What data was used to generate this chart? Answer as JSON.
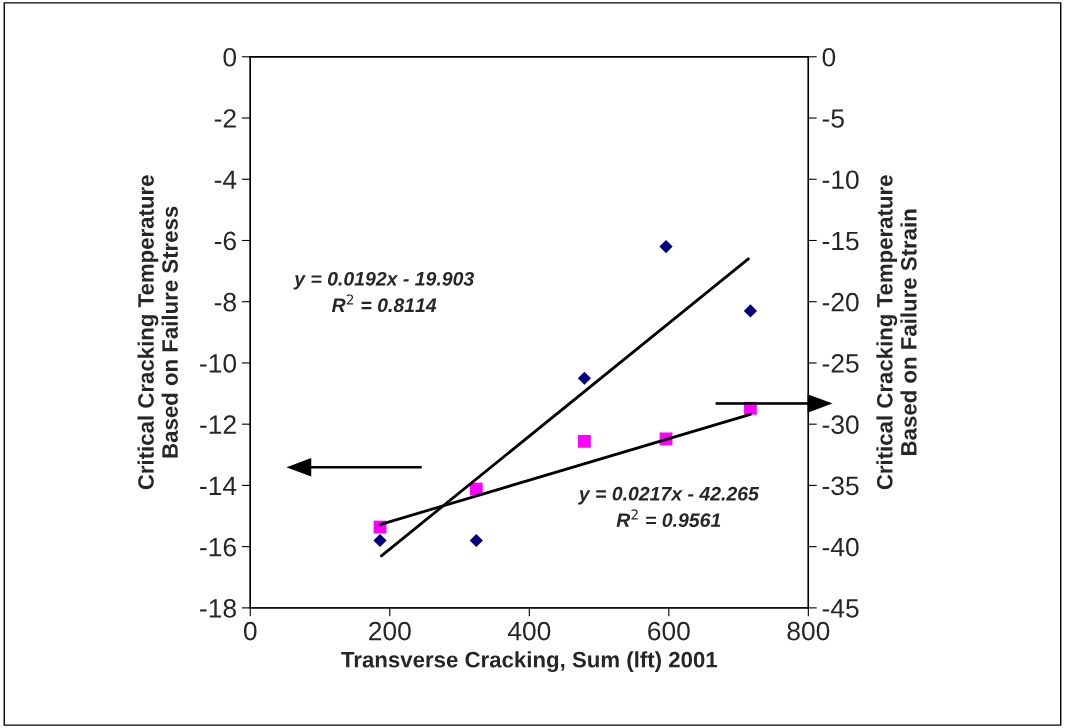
{
  "chart_data": {
    "type": "scatter",
    "xlabel": "Transverse Cracking, Sum (lft) 2001",
    "ylabel": "Critical Cracking Temperature\nBased on Failure Stress",
    "y2label": "Critical Cracking Temperature\nBased on Failure Strain",
    "xlim": [
      0,
      800
    ],
    "xticks": [
      0,
      200,
      400,
      600,
      800
    ],
    "ylim": [
      -18,
      0
    ],
    "yticks": [
      -18,
      -16,
      -14,
      -12,
      -10,
      -8,
      -6,
      -4,
      -2,
      0
    ],
    "y2lim": [
      -45,
      0
    ],
    "y2ticks": [
      -45,
      -40,
      -35,
      -30,
      -25,
      -20,
      -15,
      -10,
      -5,
      0
    ],
    "grid": false,
    "legend": false,
    "annotations": [
      "y = 0.0192x - 19.903\nR$^{2}$ = 0.8114",
      "y = 0.0217x - 42.265\nR$^{2}$ = 0.9561"
    ],
    "series": [
      {
        "marker": "diamond",
        "color": "#000080",
        "x": [
          186,
          324,
          479,
          596,
          717
        ],
        "values": [
          -15.8,
          -15.8,
          -10.5,
          -6.2,
          -8.3
        ]
      },
      {
        "marker": "square",
        "color": "#ff00ff",
        "axis": "y2",
        "x": [
          186,
          324,
          479,
          596,
          717
        ],
        "values": [
          -38.4,
          -35.3,
          -31.4,
          -31.2,
          -28.7
        ]
      },
      {
        "type": "line",
        "color": "#000000",
        "x": [
          188,
          714
        ],
        "values": [
          -16.3,
          -6.6
        ]
      },
      {
        "type": "line",
        "color": "#000000",
        "axis": "y2",
        "x": [
          186,
          717
        ],
        "values": [
          -38.2,
          -29.2
        ]
      }
    ]
  }
}
